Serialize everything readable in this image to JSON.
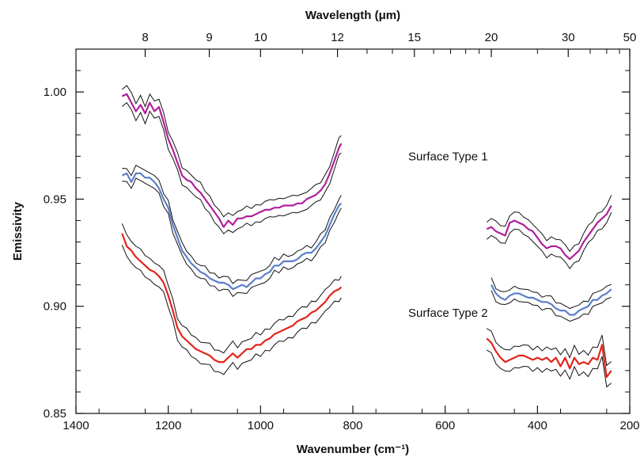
{
  "chart_data": {
    "type": "line",
    "xlabel": "Wavenumber (cm⁻¹)",
    "x2label": "Wavelength (μm)",
    "ylabel": "Emissivity",
    "xlim": [
      1400,
      200
    ],
    "ylim": [
      0.85,
      1.02
    ],
    "x_ticks": [
      {
        "value": 1400,
        "label": "1400"
      },
      {
        "value": 1200,
        "label": "1200"
      },
      {
        "value": 1000,
        "label": "1000"
      },
      {
        "value": 800,
        "label": "800"
      },
      {
        "value": 600,
        "label": "600"
      },
      {
        "value": 400,
        "label": "400"
      },
      {
        "value": 200,
        "label": "200"
      }
    ],
    "y_ticks": [
      {
        "value": 0.85,
        "label": "0.85"
      },
      {
        "value": 0.9,
        "label": "0.90"
      },
      {
        "value": 0.95,
        "label": "0.95"
      },
      {
        "value": 1.0,
        "label": "1.00"
      }
    ],
    "top_ticks": [
      {
        "value": 1250,
        "label": "8"
      },
      {
        "value": 1111.1,
        "label": "9"
      },
      {
        "value": 1000,
        "label": "10"
      },
      {
        "value": 833.3,
        "label": "12"
      },
      {
        "value": 666.7,
        "label": "15"
      },
      {
        "value": 500,
        "label": "20"
      },
      {
        "value": 333.3,
        "label": "30"
      },
      {
        "value": 200,
        "label": "50"
      }
    ],
    "annotations": [
      {
        "text": "Surface Type 1",
        "x": 680,
        "y": 0.968
      },
      {
        "text": "Surface Type 2",
        "x": 680,
        "y": 0.895
      }
    ],
    "series": [
      {
        "color": "#b0209a",
        "band": 0.004,
        "segments": [
          {
            "x": [
              1300,
              1290,
              1280,
              1270,
              1260,
              1250,
              1240,
              1230,
              1220,
              1210,
              1200,
              1190,
              1180,
              1170,
              1160,
              1150,
              1140,
              1130,
              1120,
              1110,
              1100,
              1090,
              1080,
              1070,
              1060,
              1050,
              1040,
              1030,
              1020,
              1010,
              1000,
              990,
              980,
              970,
              960,
              950,
              940,
              930,
              920,
              910,
              900,
              890,
              880,
              870,
              860,
              850,
              840,
              830,
              825
            ],
            "y": [
              0.998,
              0.999,
              0.995,
              0.991,
              0.994,
              0.99,
              0.995,
              0.991,
              0.993,
              0.986,
              0.978,
              0.973,
              0.967,
              0.961,
              0.959,
              0.958,
              0.955,
              0.953,
              0.95,
              0.947,
              0.944,
              0.941,
              0.937,
              0.94,
              0.938,
              0.941,
              0.941,
              0.942,
              0.942,
              0.943,
              0.944,
              0.945,
              0.945,
              0.946,
              0.946,
              0.947,
              0.947,
              0.947,
              0.948,
              0.948,
              0.95,
              0.951,
              0.952,
              0.954,
              0.957,
              0.962,
              0.968,
              0.974,
              0.976
            ]
          },
          {
            "x": [
              510,
              500,
              490,
              480,
              470,
              460,
              450,
              440,
              430,
              420,
              410,
              400,
              390,
              380,
              370,
              360,
              350,
              340,
              330,
              320,
              310,
              300,
              290,
              280,
              270,
              260,
              250,
              240
            ],
            "y": [
              0.936,
              0.937,
              0.935,
              0.934,
              0.933,
              0.939,
              0.94,
              0.939,
              0.938,
              0.936,
              0.935,
              0.932,
              0.929,
              0.927,
              0.928,
              0.928,
              0.927,
              0.924,
              0.922,
              0.924,
              0.926,
              0.93,
              0.933,
              0.936,
              0.939,
              0.941,
              0.943,
              0.947
            ]
          }
        ]
      },
      {
        "color": "#5b7fc9",
        "band": 0.003,
        "segments": [
          {
            "x": [
              1300,
              1290,
              1280,
              1270,
              1260,
              1250,
              1240,
              1230,
              1220,
              1210,
              1200,
              1190,
              1180,
              1170,
              1160,
              1150,
              1140,
              1130,
              1120,
              1110,
              1100,
              1090,
              1080,
              1070,
              1060,
              1050,
              1040,
              1030,
              1020,
              1010,
              1000,
              990,
              980,
              970,
              960,
              950,
              940,
              930,
              920,
              910,
              900,
              890,
              880,
              870,
              860,
              850,
              840,
              830,
              825
            ],
            "y": [
              0.961,
              0.962,
              0.958,
              0.962,
              0.962,
              0.96,
              0.96,
              0.958,
              0.955,
              0.95,
              0.946,
              0.938,
              0.932,
              0.926,
              0.923,
              0.92,
              0.918,
              0.916,
              0.915,
              0.913,
              0.912,
              0.911,
              0.911,
              0.91,
              0.908,
              0.909,
              0.91,
              0.909,
              0.911,
              0.913,
              0.913,
              0.915,
              0.916,
              0.919,
              0.919,
              0.921,
              0.921,
              0.921,
              0.922,
              0.924,
              0.925,
              0.925,
              0.927,
              0.93,
              0.933,
              0.938,
              0.943,
              0.947,
              0.948
            ]
          },
          {
            "x": [
              500,
              490,
              480,
              470,
              460,
              450,
              440,
              430,
              420,
              410,
              400,
              390,
              380,
              370,
              360,
              350,
              340,
              330,
              320,
              310,
              300,
              290,
              280,
              270,
              260,
              250,
              240
            ],
            "y": [
              0.91,
              0.906,
              0.904,
              0.903,
              0.905,
              0.906,
              0.906,
              0.905,
              0.904,
              0.904,
              0.903,
              0.902,
              0.902,
              0.901,
              0.899,
              0.898,
              0.898,
              0.896,
              0.896,
              0.898,
              0.899,
              0.9,
              0.903,
              0.903,
              0.905,
              0.906,
              0.908
            ]
          }
        ]
      },
      {
        "color": "#e2241b",
        "band": 0.005,
        "segments": [
          {
            "x": [
              1300,
              1290,
              1280,
              1270,
              1260,
              1250,
              1240,
              1230,
              1220,
              1210,
              1200,
              1190,
              1180,
              1170,
              1160,
              1150,
              1140,
              1130,
              1120,
              1110,
              1100,
              1090,
              1080,
              1070,
              1060,
              1050,
              1040,
              1030,
              1020,
              1010,
              1000,
              990,
              980,
              970,
              960,
              950,
              940,
              930,
              920,
              910,
              900,
              890,
              880,
              870,
              860,
              850,
              840,
              830,
              825
            ],
            "y": [
              0.934,
              0.928,
              0.926,
              0.923,
              0.921,
              0.919,
              0.917,
              0.916,
              0.914,
              0.911,
              0.905,
              0.898,
              0.89,
              0.886,
              0.884,
              0.882,
              0.88,
              0.879,
              0.878,
              0.877,
              0.875,
              0.874,
              0.874,
              0.876,
              0.878,
              0.876,
              0.878,
              0.88,
              0.88,
              0.882,
              0.882,
              0.884,
              0.885,
              0.887,
              0.888,
              0.889,
              0.89,
              0.891,
              0.893,
              0.894,
              0.895,
              0.897,
              0.898,
              0.9,
              0.902,
              0.905,
              0.907,
              0.908,
              0.909
            ]
          },
          {
            "x": [
              510,
              500,
              490,
              480,
              470,
              460,
              450,
              440,
              430,
              420,
              410,
              400,
              390,
              380,
              370,
              360,
              350,
              340,
              330,
              320,
              310,
              300,
              290,
              280,
              270,
              260,
              250,
              240
            ],
            "y": [
              0.885,
              0.883,
              0.879,
              0.876,
              0.874,
              0.875,
              0.876,
              0.877,
              0.877,
              0.876,
              0.875,
              0.876,
              0.875,
              0.876,
              0.874,
              0.876,
              0.872,
              0.876,
              0.871,
              0.876,
              0.873,
              0.874,
              0.873,
              0.876,
              0.875,
              0.882,
              0.867,
              0.87
            ]
          }
        ]
      }
    ]
  }
}
